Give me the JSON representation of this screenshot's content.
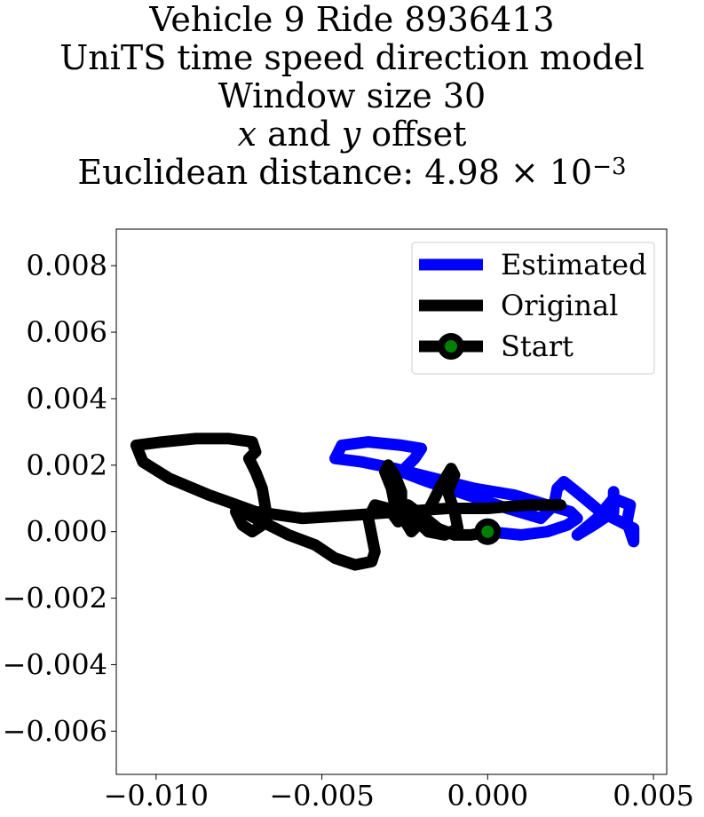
{
  "chart_data": {
    "type": "line",
    "title_lines": [
      "Vehicle 9 Ride 8936413",
      "UniTS time speed direction model",
      "Window size 30"
    ],
    "title_line4": {
      "v1": "x",
      "mid": " and ",
      "v2": "y",
      "rest": " offset"
    },
    "title_line5": {
      "prefix": "Euclidean distance: 4.98 × 10",
      "exponent": "−3"
    },
    "xlim": [
      -0.0112,
      0.0054
    ],
    "ylim": [
      -0.0073,
      0.0091
    ],
    "xticks": [
      -0.01,
      -0.005,
      0.0,
      0.005
    ],
    "xtick_labels": [
      "−0.010",
      "−0.005",
      "0.000",
      "0.005"
    ],
    "yticks": [
      0.008,
      0.006,
      0.004,
      0.002,
      0.0,
      -0.002,
      -0.004,
      -0.006
    ],
    "ytick_labels": [
      "0.008",
      "0.006",
      "0.004",
      "0.002",
      "0.000",
      "−0.002",
      "−0.004",
      "−0.006"
    ],
    "grid": false,
    "legend_position": "top-right",
    "series": [
      {
        "name": "Estimated",
        "color": "#0000ff",
        "points": [
          [
            0.0,
            0.0
          ],
          [
            0.001,
            -0.0001
          ],
          [
            0.0018,
            0.0
          ],
          [
            0.0024,
            0.0002
          ],
          [
            0.0027,
            0.0004
          ],
          [
            0.0025,
            0.0006
          ],
          [
            0.0018,
            0.0008
          ],
          [
            0.0008,
            0.0011
          ],
          [
            -0.0004,
            0.0013
          ],
          [
            -0.0016,
            0.0016
          ],
          [
            -0.0028,
            0.0019
          ],
          [
            -0.0038,
            0.0021
          ],
          [
            -0.0046,
            0.0022
          ],
          [
            -0.0044,
            0.0026
          ],
          [
            -0.0036,
            0.0027
          ],
          [
            -0.0026,
            0.0026
          ],
          [
            -0.002,
            0.0025
          ],
          [
            -0.0022,
            0.0022
          ],
          [
            -0.0026,
            0.0018
          ],
          [
            -0.0018,
            0.0015
          ],
          [
            -0.0006,
            0.0011
          ],
          [
            0.0006,
            0.0007
          ],
          [
            0.0016,
            0.0004
          ],
          [
            0.002,
            0.0008
          ],
          [
            0.0021,
            0.0013
          ],
          [
            0.0023,
            0.0015
          ],
          [
            0.0028,
            0.0011
          ],
          [
            0.0034,
            0.0006
          ],
          [
            0.004,
            0.0003
          ],
          [
            0.0044,
            0.0001
          ],
          [
            0.0044,
            -0.0003
          ],
          [
            0.0042,
            0.0003
          ],
          [
            0.0043,
            0.0008
          ],
          [
            0.0038,
            0.001
          ],
          [
            0.0033,
            0.0004
          ],
          [
            0.0027,
            -0.0001
          ],
          [
            0.0032,
            0.0002
          ],
          [
            0.0038,
            0.0006
          ],
          [
            0.0038,
            0.0012
          ]
        ]
      },
      {
        "name": "Original",
        "color": "#000000",
        "points": [
          [
            0.0022,
            0.0008
          ],
          [
            0.0012,
            0.0008
          ],
          [
            0.0,
            0.0007
          ],
          [
            -0.0012,
            0.0007
          ],
          [
            -0.0026,
            0.0006
          ],
          [
            -0.004,
            0.0005
          ],
          [
            -0.0056,
            0.0004
          ],
          [
            -0.007,
            0.0006
          ],
          [
            -0.0084,
            0.0011
          ],
          [
            -0.0096,
            0.0016
          ],
          [
            -0.0104,
            0.0021
          ],
          [
            -0.0106,
            0.0026
          ],
          [
            -0.0098,
            0.0027
          ],
          [
            -0.0088,
            0.0028
          ],
          [
            -0.0078,
            0.0028
          ],
          [
            -0.0071,
            0.0027
          ],
          [
            -0.007,
            0.0024
          ],
          [
            -0.0072,
            0.0022
          ],
          [
            -0.007,
            0.0018
          ],
          [
            -0.0068,
            0.0013
          ],
          [
            -0.0067,
            0.0007
          ],
          [
            -0.0068,
            0.0002
          ],
          [
            -0.0071,
            0.0
          ],
          [
            -0.0074,
            0.0002
          ],
          [
            -0.0076,
            0.0006
          ],
          [
            -0.0072,
            0.0005
          ],
          [
            -0.0066,
            0.0002
          ],
          [
            -0.006,
            -0.0001
          ],
          [
            -0.0052,
            -0.0004
          ],
          [
            -0.0046,
            -0.0008
          ],
          [
            -0.004,
            -0.001
          ],
          [
            -0.0035,
            -0.0009
          ],
          [
            -0.0034,
            -0.0006
          ],
          [
            -0.0035,
            -0.0001
          ],
          [
            -0.0036,
            0.0004
          ],
          [
            -0.0034,
            0.0008
          ],
          [
            -0.003,
            0.0007
          ],
          [
            -0.0027,
            0.0003
          ],
          [
            -0.0028,
            0.0008
          ],
          [
            -0.0029,
            0.0013
          ],
          [
            -0.0031,
            0.0018
          ],
          [
            -0.003,
            0.002
          ],
          [
            -0.0028,
            0.0017
          ],
          [
            -0.0026,
            0.0012
          ],
          [
            -0.0026,
            0.0005
          ],
          [
            -0.0023,
            0.0
          ],
          [
            -0.002,
            0.0003
          ],
          [
            -0.0017,
            0.0008
          ],
          [
            -0.0014,
            0.0014
          ],
          [
            -0.0011,
            0.0019
          ],
          [
            -0.001,
            0.0017
          ],
          [
            -0.0012,
            0.0012
          ],
          [
            -0.001,
            0.0006
          ],
          [
            -0.0009,
            0.0001
          ],
          [
            -0.0013,
            -0.0001
          ],
          [
            -0.0018,
            0.0
          ],
          [
            -0.0022,
            0.0004
          ],
          [
            -0.0024,
            0.0008
          ],
          [
            -0.002,
            0.0005
          ],
          [
            -0.0015,
            0.0001
          ],
          [
            -0.001,
            -0.0001
          ],
          [
            -0.0005,
            -0.0001
          ],
          [
            0.0,
            0.0
          ]
        ]
      }
    ],
    "start_marker": {
      "name": "Start",
      "x": 0.0,
      "y": 0.0,
      "face_color": "#008000",
      "edge_color": "#000000"
    }
  }
}
